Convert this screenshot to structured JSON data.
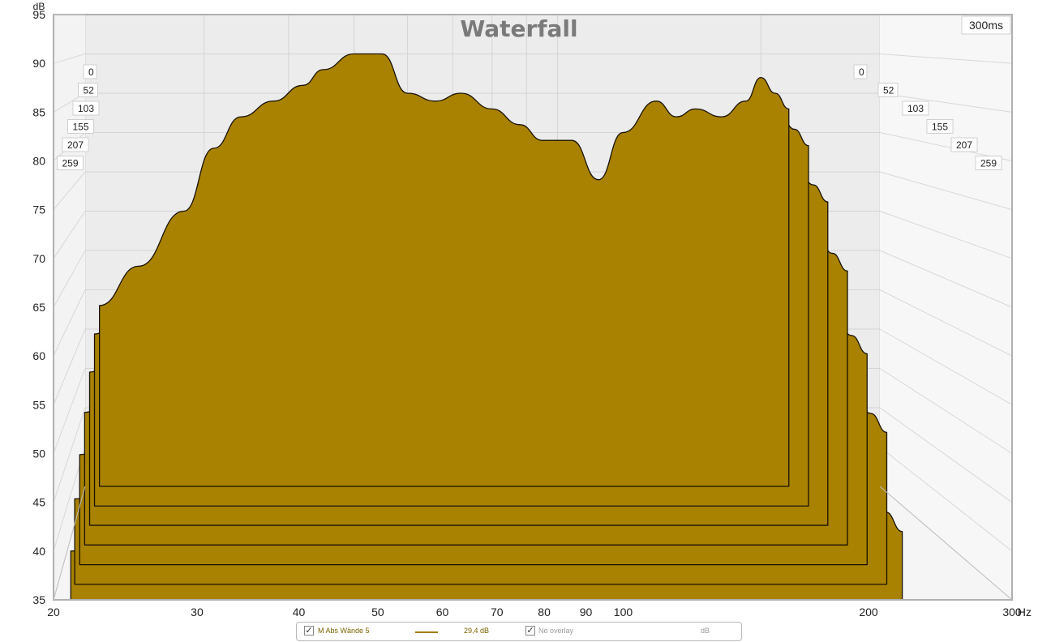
{
  "chart_data": {
    "type": "area",
    "title": "Waterfall",
    "time_label": "300ms",
    "ylabel": "dB",
    "xunit": "Hz",
    "ylim": [
      35,
      95
    ],
    "yticks": [
      35,
      40,
      45,
      50,
      55,
      60,
      65,
      70,
      75,
      80,
      85,
      90,
      95
    ],
    "xlim": [
      20,
      300
    ],
    "xscale": "log",
    "xticks": [
      20,
      30,
      40,
      50,
      60,
      70,
      80,
      90,
      100,
      200,
      300
    ],
    "time_axis_labels": [
      "0",
      "52",
      "103",
      "155",
      "207",
      "259"
    ],
    "grid": true,
    "fill_color": "#a88200",
    "line_color": "#1a1200",
    "series": [
      {
        "time_ms": 0,
        "x": [
          21,
          24,
          28,
          31,
          34,
          38,
          42,
          45,
          50,
          55,
          60,
          66,
          72,
          80,
          88,
          95,
          105,
          115,
          125,
          140,
          150,
          160,
          175,
          190,
          200,
          210,
          220
        ],
        "values": [
          58,
          63,
          70,
          78,
          82,
          84,
          86,
          88,
          90,
          90,
          85,
          84,
          85,
          83,
          81,
          79,
          79,
          74,
          80,
          84,
          82,
          83,
          82,
          84,
          87,
          85,
          83
        ]
      },
      {
        "time_ms": 52,
        "x": [
          21,
          24,
          28,
          31,
          34,
          38,
          42,
          45,
          50,
          55,
          60,
          66,
          72,
          80,
          88,
          95,
          105,
          115,
          125,
          140,
          150,
          160,
          175,
          190,
          200,
          210,
          220
        ],
        "values": [
          56,
          61,
          67,
          74,
          78,
          80,
          80,
          78,
          82,
          85,
          82,
          80,
          82,
          80,
          78,
          76,
          76,
          70,
          77,
          80,
          78,
          80,
          79,
          81,
          83,
          81,
          79
        ]
      },
      {
        "time_ms": 103,
        "x": [
          21,
          24,
          28,
          31,
          34,
          38,
          42,
          45,
          50,
          55,
          60,
          66,
          72,
          80,
          88,
          95,
          105,
          115,
          125,
          140,
          150,
          160,
          175,
          190,
          200,
          210,
          220
        ],
        "values": [
          53,
          58,
          63,
          69,
          73,
          74,
          68,
          66,
          72,
          76,
          73,
          72,
          75,
          72,
          70,
          70,
          70,
          64,
          72,
          75,
          72,
          74,
          73,
          75,
          77,
          75,
          73
        ]
      },
      {
        "time_ms": 155,
        "x": [
          21,
          24,
          28,
          31,
          34,
          38,
          42,
          45,
          50,
          55,
          60,
          66,
          72,
          80,
          88,
          95,
          105,
          115,
          125,
          140,
          150,
          160,
          175,
          190,
          200,
          210,
          220
        ],
        "values": [
          50,
          54,
          59,
          64,
          67,
          66,
          60,
          58,
          63,
          68,
          64,
          65,
          67,
          64,
          62,
          64,
          63,
          58,
          66,
          69,
          66,
          68,
          66,
          69,
          70,
          68,
          66
        ]
      },
      {
        "time_ms": 207,
        "x": [
          21,
          24,
          28,
          31,
          34,
          38,
          42,
          45,
          50,
          55,
          60,
          66,
          72,
          80,
          88,
          95,
          105,
          115,
          125,
          140,
          150,
          160,
          175,
          190,
          200,
          210,
          220
        ],
        "values": [
          47,
          50,
          54,
          58,
          61,
          58,
          53,
          52,
          56,
          60,
          57,
          58,
          60,
          57,
          55,
          57,
          56,
          52,
          59,
          62,
          59,
          61,
          59,
          62,
          62,
          60,
          58
        ]
      },
      {
        "time_ms": 259,
        "x": [
          21,
          24,
          28,
          31,
          34,
          38,
          42,
          45,
          50,
          55,
          60,
          66,
          72,
          80,
          88,
          95,
          105,
          115,
          125,
          140,
          150,
          160,
          175,
          190,
          200,
          210,
          220
        ],
        "values": [
          44,
          46,
          50,
          53,
          55,
          52,
          47,
          46,
          49,
          52,
          50,
          51,
          52,
          50,
          49,
          50,
          49,
          46,
          52,
          55,
          52,
          54,
          52,
          55,
          55,
          53,
          51
        ]
      },
      {
        "time_ms": 300,
        "x": [
          21,
          24,
          28,
          31,
          34,
          38,
          42,
          45,
          50,
          55,
          60,
          66,
          72,
          80,
          88,
          95,
          105,
          115,
          125,
          140,
          150,
          160,
          175,
          190,
          200,
          210,
          220
        ],
        "values": [
          40,
          42,
          46,
          51,
          53,
          48,
          42,
          41,
          43,
          45,
          43,
          44,
          45,
          43,
          42,
          43,
          42,
          40,
          44,
          46,
          44,
          45,
          44,
          46,
          46,
          44,
          42
        ]
      }
    ]
  },
  "legend": {
    "item1_checked": "✓",
    "item1_label": "M Abs Wände 5",
    "item1_value": "29,4 dB",
    "item2_checked": "✓",
    "item2_label": "No overlay",
    "item2_unit": "dB"
  }
}
